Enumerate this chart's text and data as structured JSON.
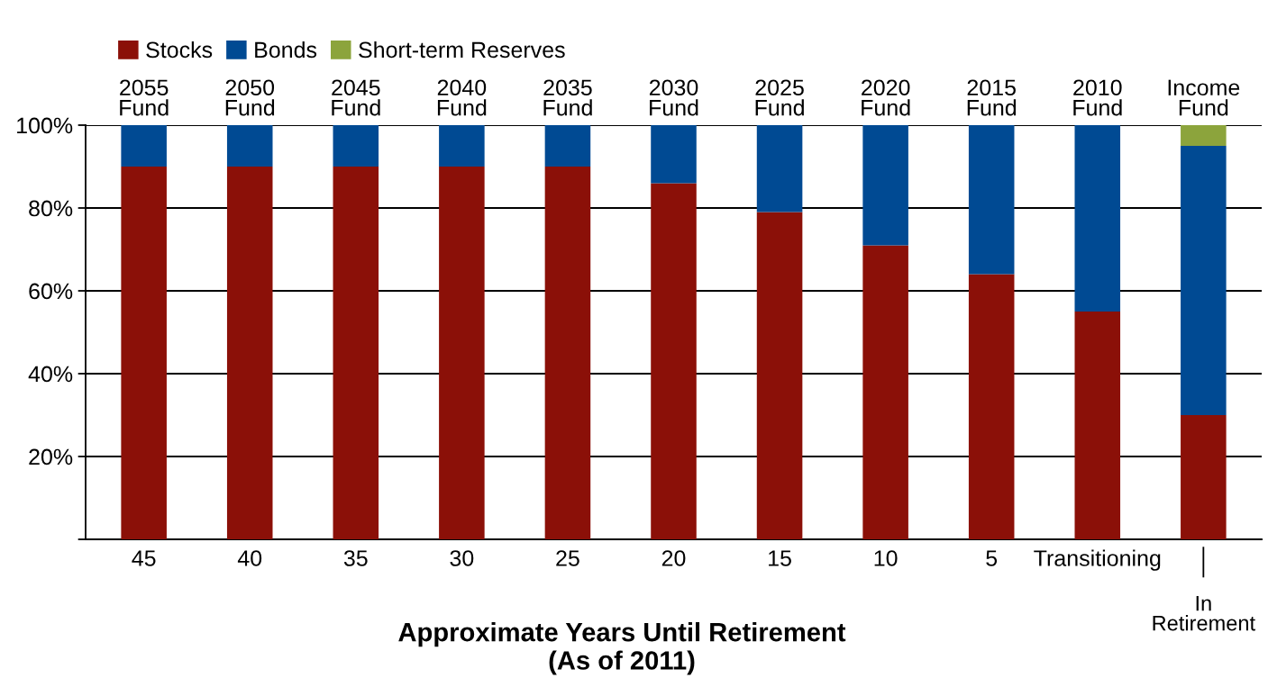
{
  "chart_data": {
    "type": "bar",
    "stacked": true,
    "categories": [
      "2055\nFund",
      "2050\nFund",
      "2045\nFund",
      "2040\nFund",
      "2035\nFund",
      "2030\nFund",
      "2025\nFund",
      "2020\nFund",
      "2015\nFund",
      "2010\nFund",
      "Income\nFund"
    ],
    "series": [
      {
        "name": "Stocks",
        "color": "#8b1008",
        "values": [
          90,
          90,
          90,
          90,
          90,
          86,
          79,
          71,
          64,
          55,
          30
        ]
      },
      {
        "name": "Bonds",
        "color": "#004a93",
        "values": [
          10,
          10,
          10,
          10,
          10,
          14,
          21,
          29,
          36,
          45,
          65
        ]
      },
      {
        "name": "Short-term Reserves",
        "color": "#8ca43c",
        "values": [
          0,
          0,
          0,
          0,
          0,
          0,
          0,
          0,
          0,
          0,
          5
        ]
      }
    ],
    "ylim": [
      0,
      100
    ],
    "yticks": [
      {
        "value": 0,
        "label": null
      },
      {
        "value": 20,
        "label": "20%"
      },
      {
        "value": 40,
        "label": "40%"
      },
      {
        "value": 60,
        "label": "60%"
      },
      {
        "value": 80,
        "label": "80%"
      },
      {
        "value": 100,
        "label": "100%"
      }
    ],
    "grid": "y",
    "legend": "top left",
    "xlabel": "Approximate Years Until Retirement\n(As of 2011)",
    "annotations": [
      "45",
      "40",
      "35",
      "30",
      "25",
      "20",
      "15",
      "10",
      "5",
      "Transitioning",
      "In\nRetirement"
    ]
  }
}
